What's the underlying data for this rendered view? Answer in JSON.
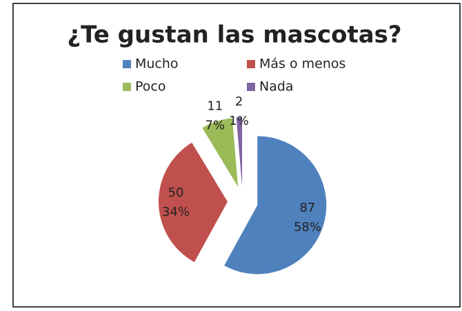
{
  "chart_data": {
    "type": "pie",
    "title": "¿Te gustan las mascotas?",
    "categories": [
      "Mucho",
      "Más o menos",
      "Poco",
      "Nada"
    ],
    "values": [
      87,
      50,
      11,
      2
    ],
    "percent_labels": [
      "58%",
      "34%",
      "7%",
      "1%"
    ],
    "colors": [
      "#4f81bd",
      "#c0504d",
      "#9bbb59",
      "#8064a2"
    ],
    "legend": "top"
  }
}
